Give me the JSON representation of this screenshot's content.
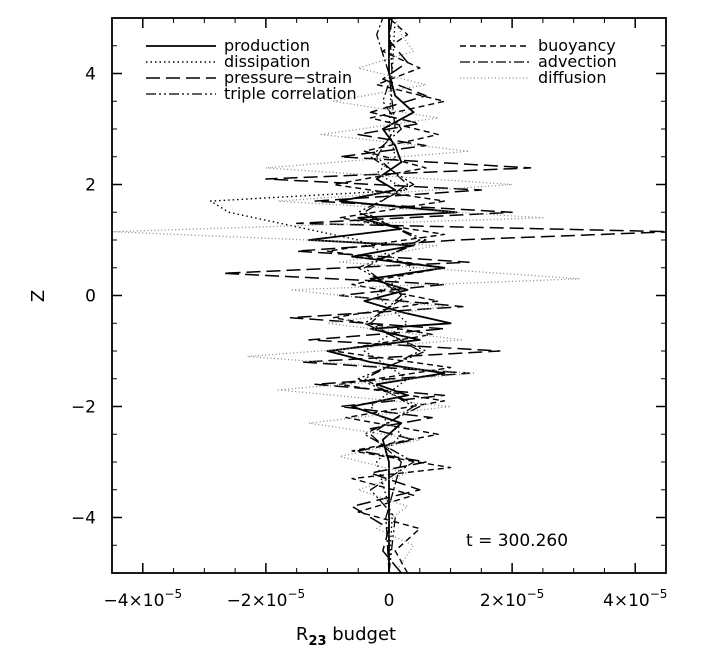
{
  "chart_data": {
    "type": "line",
    "xlabel_main": "R",
    "xlabel_sub": "23",
    "xlabel_rest": " budget",
    "ylabel": "Z",
    "xlim": [
      -4.5e-05,
      4.5e-05
    ],
    "ylim": [
      -5,
      5
    ],
    "xticks": [
      {
        "value": -4e-05,
        "mant": "−4×10",
        "exp": "−5"
      },
      {
        "value": -2e-05,
        "mant": "−2×10",
        "exp": "−5"
      },
      {
        "value": 0,
        "mant": "0",
        "exp": ""
      },
      {
        "value": 2e-05,
        "mant": "2×10",
        "exp": "−5"
      },
      {
        "value": 4e-05,
        "mant": "4×10",
        "exp": "−5"
      }
    ],
    "yticks": [
      {
        "value": -4,
        "label": "−4"
      },
      {
        "value": -2,
        "label": "−2"
      },
      {
        "value": 0,
        "label": "0"
      },
      {
        "value": 2,
        "label": "2"
      },
      {
        "value": 4,
        "label": "4"
      }
    ],
    "annotation": "t  =  300.260",
    "legend_left": [
      "production",
      "dissipation",
      "pressure−strain",
      "triple correlation"
    ],
    "legend_right": [
      "buoyancy",
      "advection",
      "diffusion"
    ],
    "series": [
      {
        "name": "production",
        "style": "solid",
        "color": "#000000",
        "width": 1.8,
        "points": [
          [
            -5,
            0.0
          ],
          [
            -4.5,
            0.0
          ],
          [
            -4,
            0.0
          ],
          [
            -3.5,
            0.0
          ],
          [
            -3,
            0.0
          ],
          [
            -2.6,
            -1e-06
          ],
          [
            -2.3,
            2e-06
          ],
          [
            -2.0,
            -6e-06
          ],
          [
            -1.8,
            3e-06
          ],
          [
            -1.6,
            -2e-06
          ],
          [
            -1.4,
            9e-06
          ],
          [
            -1.2,
            -3e-06
          ],
          [
            -1.0,
            -1e-05
          ],
          [
            -0.8,
            5e-06
          ],
          [
            -0.6,
            -3e-06
          ],
          [
            -0.5,
            1e-05
          ],
          [
            -0.3,
            2e-06
          ],
          [
            -0.1,
            -4e-06
          ],
          [
            0.1,
            3e-06
          ],
          [
            0.3,
            -3e-06
          ],
          [
            0.5,
            9e-06
          ],
          [
            0.7,
            -6e-06
          ],
          [
            0.9,
            4e-06
          ],
          [
            1.0,
            -1.3e-05
          ],
          [
            1.2,
            2e-06
          ],
          [
            1.4,
            -5e-06
          ],
          [
            1.5,
            1.1e-05
          ],
          [
            1.7,
            -8e-06
          ],
          [
            1.9,
            1e-06
          ],
          [
            2.1,
            -2e-06
          ],
          [
            2.4,
            2e-06
          ],
          [
            2.7,
            1e-06
          ],
          [
            3.0,
            -1e-06
          ],
          [
            3.3,
            4e-06
          ],
          [
            3.6,
            1e-06
          ],
          [
            4.0,
            0.0
          ],
          [
            4.5,
            0.0
          ],
          [
            5,
            0.0
          ]
        ]
      },
      {
        "name": "dissipation",
        "style": "dotted",
        "color": "#000000",
        "width": 1.4,
        "points": [
          [
            -5,
            0.0
          ],
          [
            -4,
            5e-07
          ],
          [
            -3,
            -2e-06
          ],
          [
            -2.5,
            2e-06
          ],
          [
            -2,
            -3e-06
          ],
          [
            -1.5,
            3e-06
          ],
          [
            -1.0,
            -4e-06
          ],
          [
            -0.5,
            3e-06
          ],
          [
            0,
            -2e-06
          ],
          [
            0.5,
            4e-06
          ],
          [
            1.0,
            -5e-06
          ],
          [
            1.5,
            -2.6e-05
          ],
          [
            1.7,
            -2.9e-05
          ],
          [
            1.9,
            3e-06
          ],
          [
            2.2,
            -2e-06
          ],
          [
            2.5,
            1e-06
          ],
          [
            3,
            0.0
          ],
          [
            4,
            5e-07
          ],
          [
            5,
            1e-06
          ]
        ]
      },
      {
        "name": "pressure−strain",
        "style": "longdash",
        "color": "#000000",
        "width": 1.5,
        "points": [
          [
            -5,
            2e-06
          ],
          [
            -4.6,
            -1e-06
          ],
          [
            -4.2,
            0.0
          ],
          [
            -3.8,
            -6e-06
          ],
          [
            -3.5,
            5e-06
          ],
          [
            -3.2,
            -3e-06
          ],
          [
            -3.0,
            6e-06
          ],
          [
            -2.8,
            -5e-06
          ],
          [
            -2.6,
            4e-06
          ],
          [
            -2.4,
            -3e-06
          ],
          [
            -2.2,
            7e-06
          ],
          [
            -2.0,
            -8e-06
          ],
          [
            -1.8,
            9e-06
          ],
          [
            -1.6,
            -1.2e-05
          ],
          [
            -1.4,
            1.3e-05
          ],
          [
            -1.2,
            -1.4e-05
          ],
          [
            -1.0,
            1.8e-05
          ],
          [
            -0.8,
            -1.3e-05
          ],
          [
            -0.6,
            9e-06
          ],
          [
            -0.4,
            -1.6e-05
          ],
          [
            -0.2,
            1.2e-05
          ],
          [
            0,
            -8e-06
          ],
          [
            0.2,
            9e-06
          ],
          [
            0.4,
            -2.7e-05
          ],
          [
            0.6,
            1.3e-05
          ],
          [
            0.8,
            -1.5e-05
          ],
          [
            1.0,
            1.1e-05
          ],
          [
            1.15,
            4.6e-05
          ],
          [
            1.3,
            -1.5e-05
          ],
          [
            1.5,
            2e-05
          ],
          [
            1.7,
            -1.2e-05
          ],
          [
            1.9,
            1.5e-05
          ],
          [
            2.1,
            -2e-05
          ],
          [
            2.3,
            2.3e-05
          ],
          [
            2.5,
            -8e-06
          ],
          [
            2.7,
            6e-06
          ],
          [
            2.9,
            -5e-06
          ],
          [
            3.1,
            5e-06
          ],
          [
            3.3,
            -3e-06
          ],
          [
            3.6,
            6e-06
          ],
          [
            3.9,
            -1e-06
          ],
          [
            4.2,
            3e-06
          ],
          [
            4.6,
            0.0
          ],
          [
            5,
            5e-07
          ]
        ]
      },
      {
        "name": "triple correlation",
        "style": "dashdotdot",
        "color": "#000000",
        "width": 1.3,
        "points": [
          [
            -5,
            0.0
          ],
          [
            -4,
            1e-06
          ],
          [
            -3.5,
            -3e-06
          ],
          [
            -3,
            4e-06
          ],
          [
            -2.5,
            -4e-06
          ],
          [
            -2,
            5e-06
          ],
          [
            -1.5,
            -5e-06
          ],
          [
            -1,
            6e-06
          ],
          [
            -0.5,
            -4e-06
          ],
          [
            0,
            3e-06
          ],
          [
            0.5,
            -5e-06
          ],
          [
            1,
            6e-06
          ],
          [
            1.5,
            -5e-06
          ],
          [
            2,
            4e-06
          ],
          [
            2.5,
            -3e-06
          ],
          [
            3,
            2e-06
          ],
          [
            3.5,
            -1e-06
          ],
          [
            4,
            5e-07
          ],
          [
            5,
            0.0
          ]
        ]
      },
      {
        "name": "buoyancy",
        "style": "shortdash",
        "color": "#000000",
        "width": 1.4,
        "points": [
          [
            -5,
            3e-06
          ],
          [
            -4.6,
            1e-06
          ],
          [
            -4.2,
            5e-06
          ],
          [
            -3.9,
            -5e-06
          ],
          [
            -3.6,
            4e-06
          ],
          [
            -3.3,
            -6e-06
          ],
          [
            -3.1,
            1e-05
          ],
          [
            -2.8,
            -6e-06
          ],
          [
            -2.5,
            8e-06
          ],
          [
            -2.2,
            -7e-06
          ],
          [
            -1.9,
            9e-06
          ],
          [
            -1.6,
            -8e-06
          ],
          [
            -1.3,
            1e-05
          ],
          [
            -1.0,
            -9e-06
          ],
          [
            -0.7,
            7e-06
          ],
          [
            -0.4,
            -9e-06
          ],
          [
            -0.1,
            8e-06
          ],
          [
            0.2,
            -6e-06
          ],
          [
            0.5,
            9e-06
          ],
          [
            0.8,
            -1e-05
          ],
          [
            1.1,
            9e-06
          ],
          [
            1.4,
            -8e-06
          ],
          [
            1.7,
            9e-06
          ],
          [
            2.0,
            -9e-06
          ],
          [
            2.3,
            6e-06
          ],
          [
            2.6,
            -4e-06
          ],
          [
            2.9,
            8e-06
          ],
          [
            3.2,
            -3e-06
          ],
          [
            3.5,
            9e-06
          ],
          [
            3.8,
            -2e-06
          ],
          [
            4.1,
            5e-06
          ],
          [
            4.4,
            -1e-06
          ],
          [
            4.7,
            3e-06
          ],
          [
            5,
            0.0
          ]
        ]
      },
      {
        "name": "advection",
        "style": "dashdot",
        "color": "#000000",
        "width": 1.3,
        "points": [
          [
            -5,
            0.0
          ],
          [
            -4,
            -5e-07
          ],
          [
            -3,
            2e-06
          ],
          [
            -2.5,
            -3e-06
          ],
          [
            -2,
            4e-06
          ],
          [
            -1.5,
            -4e-06
          ],
          [
            -1,
            5e-06
          ],
          [
            -0.5,
            -3e-06
          ],
          [
            0,
            2e-06
          ],
          [
            0.5,
            -4e-06
          ],
          [
            1,
            5e-06
          ],
          [
            1.5,
            -4e-06
          ],
          [
            2,
            3e-06
          ],
          [
            2.5,
            -2e-06
          ],
          [
            3,
            1e-06
          ],
          [
            4,
            0.0
          ],
          [
            4.7,
            -2e-06
          ],
          [
            5,
            -1e-06
          ]
        ]
      },
      {
        "name": "diffusion",
        "style": "finedot",
        "color": "#888888",
        "width": 1.3,
        "points": [
          [
            -5,
            1e-06
          ],
          [
            -4.5,
            4e-06
          ],
          [
            -4.2,
            -2e-06
          ],
          [
            -3.8,
            3e-06
          ],
          [
            -3.5,
            -5e-06
          ],
          [
            -3.2,
            3e-06
          ],
          [
            -2.9,
            -8e-06
          ],
          [
            -2.6,
            5e-06
          ],
          [
            -2.3,
            -1.3e-05
          ],
          [
            -2.0,
            1e-05
          ],
          [
            -1.7,
            -1.8e-05
          ],
          [
            -1.4,
            1.4e-05
          ],
          [
            -1.1,
            -2.3e-05
          ],
          [
            -0.8,
            1.2e-05
          ],
          [
            -0.5,
            -1e-05
          ],
          [
            -0.2,
            9e-06
          ],
          [
            0.1,
            -1.6e-05
          ],
          [
            0.3,
            3.1e-05
          ],
          [
            0.6,
            -8e-06
          ],
          [
            0.9,
            8e-06
          ],
          [
            1.15,
            -4.5e-05
          ],
          [
            1.4,
            2.5e-05
          ],
          [
            1.7,
            -1.8e-05
          ],
          [
            2.0,
            2e-05
          ],
          [
            2.3,
            -2e-05
          ],
          [
            2.6,
            1.3e-05
          ],
          [
            2.9,
            -1.1e-05
          ],
          [
            3.2,
            8e-06
          ],
          [
            3.5,
            -9e-06
          ],
          [
            3.8,
            6e-06
          ],
          [
            4.1,
            -5e-06
          ],
          [
            4.4,
            4e-06
          ],
          [
            4.7,
            2e-06
          ],
          [
            5,
            1e-06
          ]
        ]
      }
    ]
  }
}
